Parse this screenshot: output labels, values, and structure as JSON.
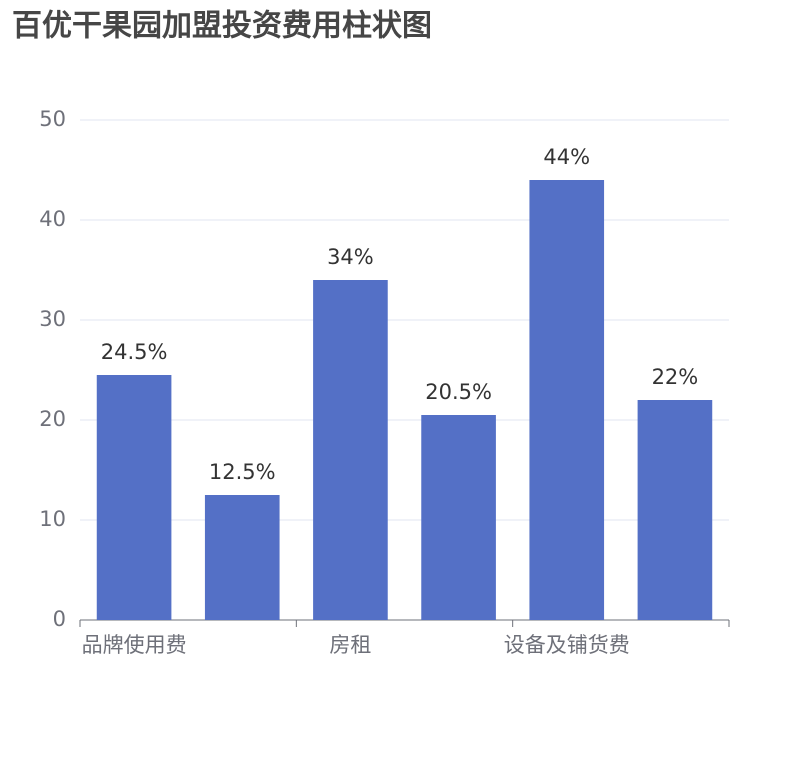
{
  "chart_data": {
    "type": "bar",
    "title": "百优干果园加盟投资费用柱状图",
    "categories": [
      "品牌使用费",
      null,
      "房租",
      null,
      "设备及铺货费",
      null
    ],
    "values": [
      24.5,
      12.5,
      34,
      20.5,
      44,
      22
    ],
    "value_labels": [
      "24.5%",
      "12.5%",
      "34%",
      "20.5%",
      "44%",
      "22%"
    ],
    "color": "#5470c6",
    "ylim": [
      0,
      50
    ],
    "yticks": [
      0,
      10,
      20,
      30,
      40,
      50
    ],
    "grid": true
  }
}
